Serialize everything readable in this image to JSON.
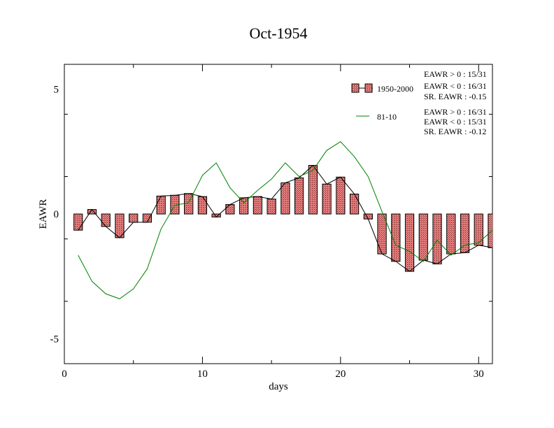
{
  "chart_data": {
    "type": "bar",
    "title": "Oct-1954",
    "xlabel": "days",
    "ylabel": "EAWR",
    "xlim": [
      0,
      31
    ],
    "ylim": [
      -6,
      6
    ],
    "x_ticks": [
      0,
      10,
      20,
      30
    ],
    "x_tick_labels": [
      "0",
      "10",
      "20",
      "30"
    ],
    "y_ticks": [
      -5,
      0,
      5
    ],
    "y_tick_labels": [
      "-5",
      "0",
      "5"
    ],
    "grid": false,
    "legend_position": "top-right",
    "series": [
      {
        "name": "1950-2000",
        "kind": "bar",
        "color": "#e88080",
        "x": [
          1,
          2,
          3,
          4,
          5,
          6,
          7,
          8,
          9,
          10,
          11,
          12,
          13,
          14,
          15,
          16,
          17,
          18,
          19,
          20,
          21,
          22,
          23,
          24,
          25,
          26,
          27,
          28,
          29,
          30,
          31
        ],
        "values": [
          -0.65,
          0.18,
          -0.5,
          -0.95,
          -0.33,
          -0.33,
          0.72,
          0.75,
          0.82,
          0.7,
          -0.12,
          0.38,
          0.65,
          0.7,
          0.6,
          1.25,
          1.45,
          1.95,
          1.2,
          1.48,
          0.8,
          -0.2,
          -1.6,
          -1.9,
          -2.3,
          -1.85,
          -2.0,
          -1.6,
          -1.55,
          -1.25,
          -1.35
        ]
      },
      {
        "name": "81-10",
        "kind": "line",
        "color": "#008000",
        "x": [
          1,
          2,
          3,
          4,
          5,
          6,
          7,
          8,
          9,
          10,
          11,
          12,
          13,
          14,
          15,
          16,
          17,
          18,
          19,
          20,
          21,
          22,
          23,
          24,
          25,
          26,
          27,
          28,
          29,
          30,
          31
        ],
        "values": [
          -1.65,
          -2.7,
          -3.2,
          -3.4,
          -3.0,
          -2.2,
          -0.6,
          0.35,
          0.45,
          1.55,
          2.05,
          1.05,
          0.45,
          0.95,
          1.4,
          2.05,
          1.5,
          1.75,
          2.55,
          2.9,
          2.3,
          1.5,
          0.1,
          -1.25,
          -1.5,
          -1.9,
          -1.05,
          -1.65,
          -1.25,
          -1.15,
          -0.65
        ]
      }
    ],
    "stats": [
      [
        "EAWR > 0 : 15/31",
        "EAWR < 0 : 16/31",
        "SR. EAWR : -0.15"
      ],
      [
        "EAWR > 0 : 16/31",
        "EAWR < 0 : 15/31",
        "SR. EAWR : -0.12"
      ]
    ]
  }
}
